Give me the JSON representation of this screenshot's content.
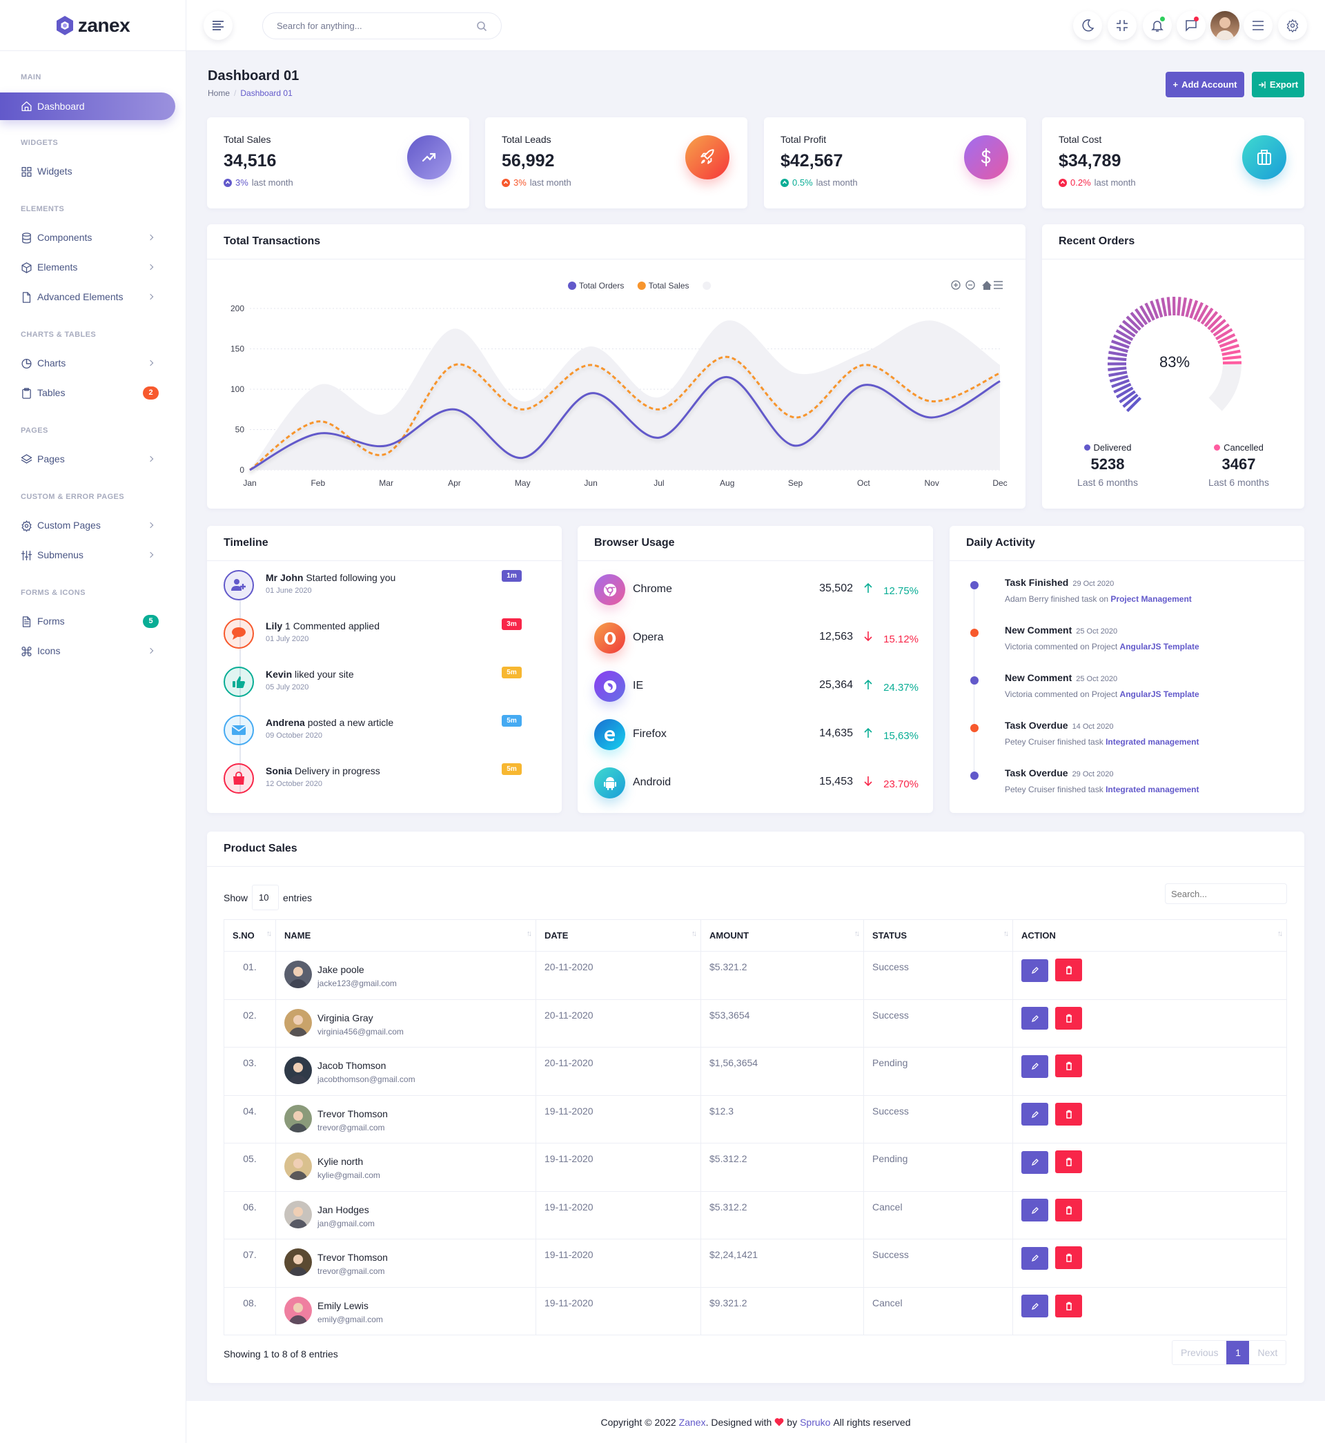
{
  "brand": {
    "name": "zanex"
  },
  "header": {
    "search_placeholder": "Search for anything..."
  },
  "sidebar": {
    "sections": [
      {
        "label": "MAIN",
        "items": [
          {
            "label": "Dashboard",
            "icon": "home",
            "active": true,
            "submenu": false,
            "badge": ""
          }
        ]
      },
      {
        "label": "WIDGETS",
        "items": [
          {
            "label": "Widgets",
            "icon": "grid",
            "submenu": false,
            "badge": ""
          }
        ]
      },
      {
        "label": "ELEMENTS",
        "items": [
          {
            "label": "Components",
            "icon": "database",
            "submenu": true,
            "badge": ""
          },
          {
            "label": "Elements",
            "icon": "box",
            "submenu": true,
            "badge": ""
          },
          {
            "label": "Advanced Elements",
            "icon": "file",
            "submenu": true,
            "badge": ""
          }
        ]
      },
      {
        "label": "CHARTS & TABLES",
        "items": [
          {
            "label": "Charts",
            "icon": "pie-chart",
            "submenu": true,
            "badge": ""
          },
          {
            "label": "Tables",
            "icon": "clipboard",
            "submenu": false,
            "badge": "2",
            "badge_color": "#f7592d"
          }
        ]
      },
      {
        "label": "PAGES",
        "items": [
          {
            "label": "Pages",
            "icon": "layers",
            "submenu": true,
            "badge": ""
          }
        ]
      },
      {
        "label": "CUSTOM & ERROR PAGES",
        "items": [
          {
            "label": "Custom Pages",
            "icon": "settings",
            "submenu": true,
            "badge": ""
          },
          {
            "label": "Submenus",
            "icon": "sliders",
            "submenu": true,
            "badge": ""
          }
        ]
      },
      {
        "label": "FORMS & ICONS",
        "items": [
          {
            "label": "Forms",
            "icon": "file-text",
            "submenu": false,
            "badge": "5",
            "badge_color": "#09ad95"
          },
          {
            "label": "Icons",
            "icon": "command",
            "submenu": true,
            "badge": ""
          }
        ]
      }
    ]
  },
  "page": {
    "title": "Dashboard 01",
    "breadcrumb": [
      "Home",
      "Dashboard 01"
    ],
    "add_account": "Add Account",
    "export": "Export"
  },
  "stats": [
    {
      "label": "Total Sales",
      "value": "34,516",
      "change": "3%",
      "suffix": "last month",
      "color": "#6259ca",
      "icon": "trending-up",
      "gradient": [
        "#6259ca",
        "#a299ea"
      ]
    },
    {
      "label": "Total Leads",
      "value": "56,992",
      "change": "3%",
      "suffix": "last month",
      "color": "#f7592d",
      "icon": "rocket",
      "gradient": [
        "#f7a34a",
        "#f5363a"
      ]
    },
    {
      "label": "Total Profit",
      "value": "$42,567",
      "change": "0.5%",
      "suffix": "last month",
      "color": "#09ad95",
      "icon": "dollar",
      "gradient": [
        "#a06ef0",
        "#e35aa8"
      ]
    },
    {
      "label": "Total Cost",
      "value": "$34,789",
      "change": "0.2%",
      "suffix": "last month",
      "color": "#f82649",
      "icon": "briefcase",
      "gradient": [
        "#3fd9cf",
        "#1a9ed8"
      ]
    }
  ],
  "transactions": {
    "title": "Total Transactions"
  },
  "chart_data": {
    "type": "line",
    "title": "Total Transactions",
    "categories": [
      "Jan",
      "Feb",
      "Mar",
      "Apr",
      "May",
      "Jun",
      "Jul",
      "Aug",
      "Sep",
      "Oct",
      "Nov",
      "Dec"
    ],
    "yticks": [
      0,
      50,
      100,
      150,
      200
    ],
    "ylim": [
      0,
      200
    ],
    "grid": true,
    "legend": "top-center",
    "series": [
      {
        "name": "Total Orders",
        "color": "#6259ca",
        "style": "solid",
        "values": [
          0,
          45,
          30,
          75,
          15,
          95,
          40,
          115,
          30,
          105,
          65,
          110
        ]
      },
      {
        "name": "Total Sales",
        "color": "#f7952d",
        "style": "dashed",
        "values": [
          0,
          60,
          20,
          130,
          75,
          130,
          75,
          140,
          65,
          130,
          85,
          120
        ]
      },
      {
        "name": "",
        "color": "#f1f1f5",
        "style": "area",
        "values": [
          0,
          105,
          70,
          175,
          85,
          153,
          90,
          185,
          120,
          145,
          185,
          130
        ]
      }
    ]
  },
  "recent_orders": {
    "title": "Recent Orders",
    "percent": 83,
    "percent_label": "83%",
    "delivered": {
      "label": "Delivered",
      "value": "5238",
      "period": "Last 6 months",
      "color": "#6259ca"
    },
    "cancelled": {
      "label": "Cancelled",
      "value": "3467",
      "period": "Last 6 months",
      "color": "#ff5ca0"
    }
  },
  "timeline": {
    "title": "Timeline",
    "items": [
      {
        "name": "Mr John",
        "action": "Started following you",
        "date": "01 June 2020",
        "badge": "1m",
        "badge_color": "#6259ca",
        "color": "#6259ca",
        "icon": "user-plus"
      },
      {
        "name": "Lily",
        "action": "1 Commented applied",
        "date": "01 July 2020",
        "badge": "3m",
        "badge_color": "#f82649",
        "color": "#f7592d",
        "icon": "comment"
      },
      {
        "name": "Kevin",
        "action": "liked your site",
        "date": "05 July 2020",
        "badge": "5m",
        "badge_color": "#f7b731",
        "color": "#09ad95",
        "icon": "thumbs-up"
      },
      {
        "name": "Andrena",
        "action": "posted a new article",
        "date": "09 October 2020",
        "badge": "5m",
        "badge_color": "#45aaf2",
        "color": "#45aaf2",
        "icon": "mail"
      },
      {
        "name": "Sonia",
        "action": "Delivery in progress",
        "date": "12 October 2020",
        "badge": "5m",
        "badge_color": "#f7b731",
        "color": "#f82649",
        "icon": "bag"
      }
    ]
  },
  "browsers": {
    "title": "Browser Usage",
    "items": [
      {
        "name": "Chrome",
        "value": "35,502",
        "change": "12.75%",
        "trend": "up",
        "icon": "chrome",
        "gradient": [
          "#a66de8",
          "#e75c9f"
        ]
      },
      {
        "name": "Opera",
        "value": "12,563",
        "change": "15.12%",
        "trend": "down",
        "icon": "opera",
        "gradient": [
          "#f5a04a",
          "#f0393b"
        ]
      },
      {
        "name": "IE",
        "value": "25,364",
        "change": "24.37%",
        "trend": "up",
        "icon": "firefox",
        "gradient": [
          "#8a3ef0",
          "#6670e6"
        ]
      },
      {
        "name": "Firefox",
        "value": "14,635",
        "change": "15,63%",
        "trend": "up",
        "icon": "edge",
        "gradient": [
          "#1a6fd1",
          "#14d0ee"
        ]
      },
      {
        "name": "Android",
        "value": "15,453",
        "change": "23.70%",
        "trend": "down",
        "icon": "android",
        "gradient": [
          "#3fd9cf",
          "#1a9ed8"
        ]
      }
    ]
  },
  "activity": {
    "title": "Daily Activity",
    "items": [
      {
        "title": "Task Finished",
        "date": "29 Oct 2020",
        "text": "Adam Berry finished task on",
        "link": "Project Management",
        "color": "#6259ca"
      },
      {
        "title": "New Comment",
        "date": "25 Oct 2020",
        "text": "Victoria commented on Project",
        "link": "AngularJS Template",
        "color": "#f7592d"
      },
      {
        "title": "New Comment",
        "date": "25 Oct 2020",
        "text": "Victoria commented on Project",
        "link": "AngularJS Template",
        "color": "#6259ca"
      },
      {
        "title": "Task Overdue",
        "date": "14 Oct 2020",
        "text": "Petey Cruiser finished task",
        "link": "Integrated management",
        "color": "#f7592d"
      },
      {
        "title": "Task Overdue",
        "date": "29 Oct 2020",
        "text": "Petey Cruiser finished task",
        "link": "Integrated management",
        "color": "#6259ca"
      }
    ]
  },
  "product_sales": {
    "title": "Product Sales",
    "show": "Show",
    "entries_value": "10",
    "entries": "entries",
    "search_placeholder": "Search...",
    "columns": [
      "S.NO",
      "NAME",
      "DATE",
      "AMOUNT",
      "STATUS",
      "ACTION"
    ],
    "rows": [
      {
        "sno": "01.",
        "name": "Jake poole",
        "email": "jacke123@gmail.com",
        "date": "20-11-2020",
        "amount": "$5.321.2",
        "status": "Success",
        "avatar_color": "#5a5f6e"
      },
      {
        "sno": "02.",
        "name": "Virginia Gray",
        "email": "virginia456@gmail.com",
        "date": "20-11-2020",
        "amount": "$53,3654",
        "status": "Success",
        "avatar_color": "#c9a36a"
      },
      {
        "sno": "03.",
        "name": "Jacob Thomson",
        "email": "jacobthomson@gmail.com",
        "date": "20-11-2020",
        "amount": "$1,56,3654",
        "status": "Pending",
        "avatar_color": "#2f3a48"
      },
      {
        "sno": "04.",
        "name": "Trevor Thomson",
        "email": "trevor@gmail.com",
        "date": "19-11-2020",
        "amount": "$12.3",
        "status": "Success",
        "avatar_color": "#8a9a7a"
      },
      {
        "sno": "05.",
        "name": "Kylie north",
        "email": "kylie@gmail.com",
        "date": "19-11-2020",
        "amount": "$5.312.2",
        "status": "Pending",
        "avatar_color": "#d9c08e"
      },
      {
        "sno": "06.",
        "name": "Jan Hodges",
        "email": "jan@gmail.com",
        "date": "19-11-2020",
        "amount": "$5.312.2",
        "status": "Cancel",
        "avatar_color": "#c8c3bd"
      },
      {
        "sno": "07.",
        "name": "Trevor Thomson",
        "email": "trevor@gmail.com",
        "date": "19-11-2020",
        "amount": "$2,24,1421",
        "status": "Success",
        "avatar_color": "#5b4a32"
      },
      {
        "sno": "08.",
        "name": "Emily Lewis",
        "email": "emily@gmail.com",
        "date": "19-11-2020",
        "amount": "$9.321.2",
        "status": "Cancel",
        "avatar_color": "#ef7fa0"
      }
    ],
    "info": "Showing 1 to 8 of 8 entries",
    "pagination": {
      "previous": "Previous",
      "current": "1",
      "next": "Next"
    }
  },
  "footer": {
    "prefix": "Copyright © 2022",
    "brand": "Zanex",
    "middle": ". Designed with",
    "by": "by",
    "author": "Spruko",
    "suffix": "All rights reserved"
  },
  "colors": {
    "primary": "#6259ca",
    "success": "#09ad95",
    "danger": "#f82649",
    "warning": "#f7b731",
    "orange": "#f7592d"
  }
}
